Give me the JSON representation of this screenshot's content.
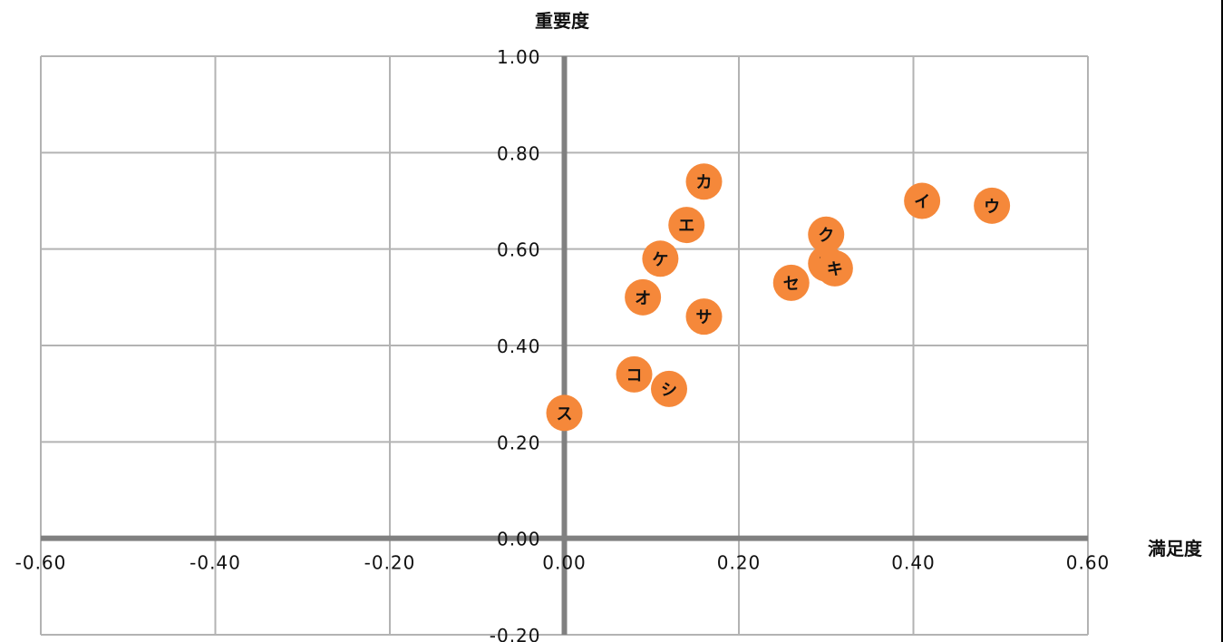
{
  "chart_data": {
    "type": "scatter",
    "title": "",
    "xlabel": "満足度",
    "ylabel": "重要度",
    "xlim": [
      -0.6,
      0.6
    ],
    "ylim": [
      -0.2,
      1.0
    ],
    "x_ticks": [
      -0.6,
      -0.4,
      -0.2,
      0.0,
      0.2,
      0.4,
      0.6
    ],
    "y_ticks": [
      -0.2,
      0.0,
      0.2,
      0.4,
      0.6,
      0.8,
      1.0
    ],
    "x_tick_labels": [
      "-0.60",
      "-0.40",
      "-0.20",
      "0.00",
      "0.20",
      "0.40",
      "0.60"
    ],
    "y_tick_labels": [
      "-0.20",
      "0.00",
      "0.20",
      "0.40",
      "0.60",
      "0.80",
      "1.00"
    ],
    "grid": true,
    "marker_color": "#F5883A",
    "points": [
      {
        "label": "ア",
        "x": 0.3,
        "y": 0.57
      },
      {
        "label": "イ",
        "x": 0.41,
        "y": 0.7
      },
      {
        "label": "ウ",
        "x": 0.49,
        "y": 0.69
      },
      {
        "label": "エ",
        "x": 0.14,
        "y": 0.65
      },
      {
        "label": "オ",
        "x": 0.09,
        "y": 0.5
      },
      {
        "label": "カ",
        "x": 0.16,
        "y": 0.74
      },
      {
        "label": "キ",
        "x": 0.31,
        "y": 0.56
      },
      {
        "label": "ク",
        "x": 0.3,
        "y": 0.63
      },
      {
        "label": "ケ",
        "x": 0.11,
        "y": 0.58
      },
      {
        "label": "コ",
        "x": 0.08,
        "y": 0.34
      },
      {
        "label": "サ",
        "x": 0.16,
        "y": 0.46
      },
      {
        "label": "シ",
        "x": 0.12,
        "y": 0.31
      },
      {
        "label": "ス",
        "x": 0.0,
        "y": 0.26
      },
      {
        "label": "セ",
        "x": 0.26,
        "y": 0.53
      }
    ]
  }
}
